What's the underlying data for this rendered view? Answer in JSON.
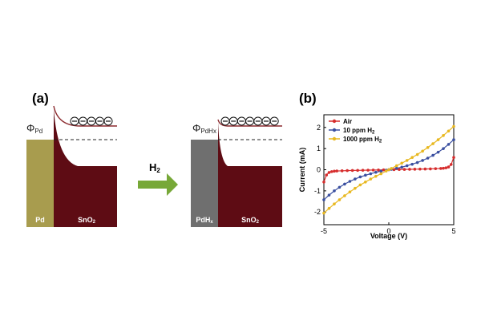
{
  "panel_a": {
    "label": "(a)",
    "before": {
      "work_function_symbol": "Φ",
      "work_function_sub": "Pd",
      "metal_label": "Pd",
      "oxide_label_main": "SnO",
      "oxide_label_sub": "2",
      "electron_count": 5
    },
    "arrow": {
      "gas_label_main": "H",
      "gas_label_sub": "2"
    },
    "after": {
      "work_function_symbol": "Φ",
      "work_function_sub": "PdHx",
      "metal_label_main": "PdH",
      "metal_label_sub": "x",
      "oxide_label_main": "SnO",
      "oxide_label_sub": "2",
      "electron_count": 7
    },
    "colors": {
      "pd": "#A89C4E",
      "pdhx": "#6F6F6F",
      "sno2": "#5E0C14",
      "band_curve": "#8B2A2E",
      "arrow": "#77A838"
    }
  },
  "panel_b": {
    "label": "(b)",
    "chart_data": {
      "type": "line",
      "xlabel": "Voltage (V)",
      "ylabel": "Current (mA)",
      "xlim": [
        -5,
        5
      ],
      "ylim": [
        -2.6,
        2.6
      ],
      "xticks": [
        "-5",
        "0",
        "5"
      ],
      "yticks": [
        "-2",
        "-1",
        "0",
        "1",
        "2"
      ],
      "legend_position": "top-left",
      "series": [
        {
          "name_main": "Air",
          "name_sub": "",
          "color": "#D62D2D",
          "x": [
            -5.0,
            -4.8,
            -4.6,
            -4.4,
            -4.2,
            -4.0,
            -3.6,
            -3.2,
            -2.8,
            -2.4,
            -2.0,
            -1.6,
            -1.2,
            -0.8,
            -0.4,
            0,
            0.4,
            0.8,
            1.2,
            1.6,
            2.0,
            2.4,
            2.8,
            3.2,
            3.6,
            4.0,
            4.2,
            4.4,
            4.6,
            4.8,
            5.0
          ],
          "y": [
            -0.58,
            -0.25,
            -0.13,
            -0.09,
            -0.07,
            -0.06,
            -0.05,
            -0.04,
            -0.035,
            -0.03,
            -0.025,
            -0.02,
            -0.015,
            -0.01,
            -0.005,
            0,
            0.005,
            0.01,
            0.015,
            0.02,
            0.025,
            0.03,
            0.035,
            0.04,
            0.05,
            0.06,
            0.07,
            0.09,
            0.13,
            0.25,
            0.58
          ]
        },
        {
          "name_main": "10 ppm H",
          "name_sub": "2",
          "color": "#3A4FA0",
          "x": [
            -5.0,
            -4.6,
            -4.2,
            -3.8,
            -3.4,
            -3.0,
            -2.6,
            -2.2,
            -1.8,
            -1.4,
            -1.0,
            -0.6,
            -0.2,
            0,
            0.2,
            0.6,
            1.0,
            1.4,
            1.8,
            2.2,
            2.6,
            3.0,
            3.4,
            3.8,
            4.2,
            4.6,
            5.0
          ],
          "y": [
            -1.42,
            -1.2,
            -1.0,
            -0.83,
            -0.68,
            -0.55,
            -0.44,
            -0.34,
            -0.26,
            -0.19,
            -0.12,
            -0.07,
            -0.02,
            0,
            0.02,
            0.07,
            0.12,
            0.19,
            0.26,
            0.34,
            0.44,
            0.55,
            0.68,
            0.83,
            1.0,
            1.2,
            1.42
          ]
        },
        {
          "name_main": "1000 ppm H",
          "name_sub": "2",
          "color": "#E8B820",
          "x": [
            -5.0,
            -4.6,
            -4.2,
            -3.8,
            -3.4,
            -3.0,
            -2.6,
            -2.2,
            -1.8,
            -1.4,
            -1.0,
            -0.6,
            -0.2,
            0,
            0.2,
            0.6,
            1.0,
            1.4,
            1.8,
            2.2,
            2.6,
            3.0,
            3.4,
            3.8,
            4.2,
            4.6,
            5.0
          ],
          "y": [
            -2.05,
            -1.83,
            -1.62,
            -1.42,
            -1.23,
            -1.05,
            -0.88,
            -0.72,
            -0.58,
            -0.44,
            -0.31,
            -0.19,
            -0.06,
            0,
            0.06,
            0.19,
            0.31,
            0.44,
            0.58,
            0.72,
            0.88,
            1.05,
            1.23,
            1.42,
            1.62,
            1.83,
            2.05
          ]
        }
      ]
    }
  }
}
